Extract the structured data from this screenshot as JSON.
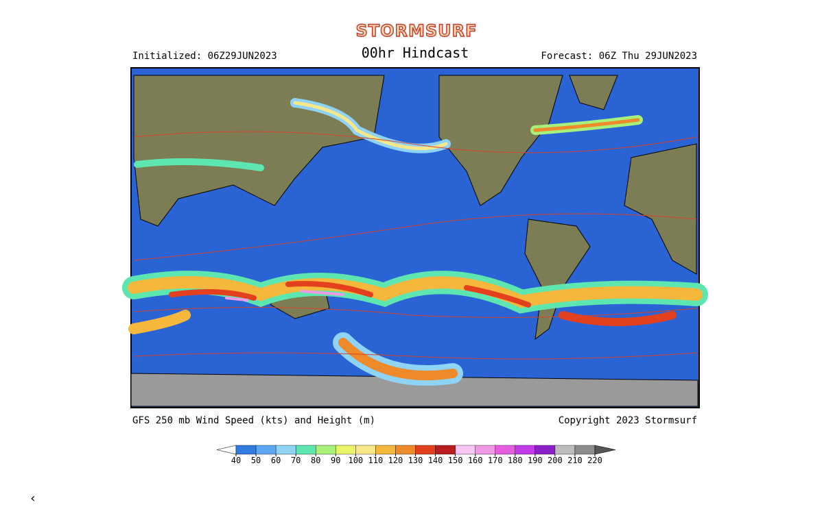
{
  "header": {
    "logo": "STORMSURF",
    "initialized": "Initialized: 06Z29JUN2023",
    "title": "00hr Hindcast",
    "forecast": "Forecast: 06Z Thu 29JUN2023"
  },
  "footer": {
    "caption": "GFS 250 mb Wind Speed (kts) and Height (m)",
    "copyright": "Copyright 2023 Stormsurf"
  },
  "legend": {
    "ticks": [
      40,
      50,
      60,
      70,
      80,
      90,
      100,
      110,
      120,
      130,
      140,
      150,
      160,
      170,
      180,
      190,
      200,
      210,
      220
    ],
    "colors": [
      "#ffffff",
      "#2f7be0",
      "#5ea6f2",
      "#8fd3f7",
      "#5ee6b0",
      "#a8f07a",
      "#e8f56a",
      "#f7e68a",
      "#f5b83c",
      "#ee8a2a",
      "#e2401e",
      "#b81c1c",
      "#f7c6f2",
      "#f09ae6",
      "#e65ee0",
      "#c33ae8",
      "#8a1fc8",
      "#bdbdbd",
      "#8c8c8c",
      "#555555"
    ]
  },
  "nav": {
    "back": "‹"
  }
}
